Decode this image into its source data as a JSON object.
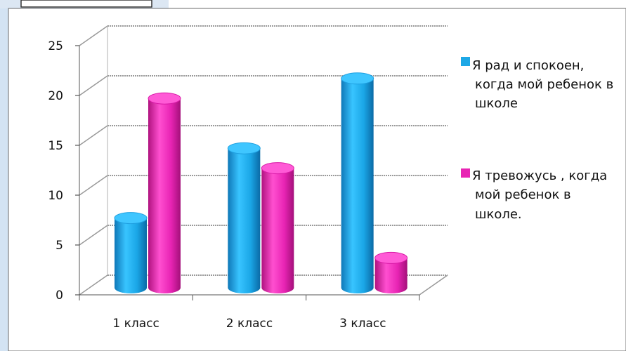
{
  "chart_data": {
    "type": "bar",
    "categories": [
      "1 класс",
      "2 класс",
      "3 класс"
    ],
    "series": [
      {
        "name": "Я рад и спокоен, когда мой ребенок в школе",
        "values": [
          7,
          14,
          21
        ],
        "color": "#1EA8E6"
      },
      {
        "name": "Я тревожусь , когда мой ребенок в школе.",
        "values": [
          19,
          12,
          3
        ],
        "color": "#E824B4"
      }
    ],
    "ylim": [
      0,
      25
    ],
    "yticks": [
      0,
      5,
      10,
      15,
      20,
      25
    ],
    "grid": true,
    "legend_position": "right",
    "title": "",
    "xlabel": "",
    "ylabel": ""
  },
  "legend": {
    "series_0_lines": [
      "Я рад и спокоен,",
      "когда мой ребенок в",
      "школе"
    ],
    "series_1_lines": [
      "Я тревожусь , когда",
      "мой ребенок в",
      "школе."
    ]
  },
  "colors": {
    "page_background": "#ffffff",
    "left_panel": "#D3E3F3",
    "plot_area": "#ffffff",
    "grid": "#a0a0a0",
    "frame": "#6b6b6b"
  }
}
